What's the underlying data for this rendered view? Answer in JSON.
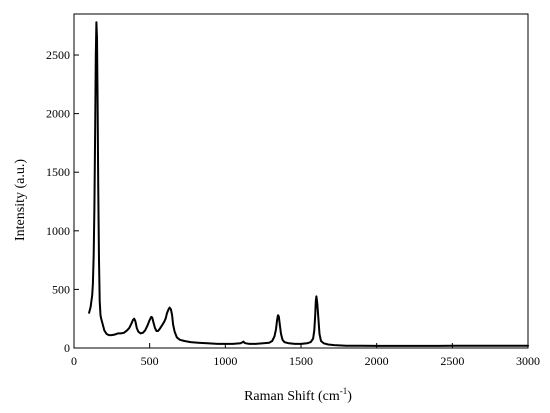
{
  "chart_data": {
    "type": "line",
    "title": "",
    "xlabel": "Raman Shift (cm",
    "xlabel_sup": "-1",
    "xlabel_close": ")",
    "ylabel": "Intensity (a.u.)",
    "xlim": [
      0,
      3000
    ],
    "ylim": [
      0,
      2850
    ],
    "grid": false,
    "legend": "none",
    "x_ticks": [
      0,
      500,
      1000,
      1500,
      2000,
      2500,
      3000
    ],
    "y_ticks": [
      0,
      500,
      1000,
      1500,
      2000,
      2500
    ],
    "series": [
      {
        "color": "#000000",
        "x": [
          100,
          110,
          120,
          125,
          130,
          135,
          140,
          144,
          148,
          152,
          156,
          160,
          165,
          170,
          175,
          180,
          190,
          200,
          215,
          230,
          250,
          270,
          290,
          310,
          330,
          350,
          365,
          380,
          390,
          398,
          405,
          415,
          425,
          440,
          455,
          470,
          485,
          500,
          510,
          517,
          525,
          535,
          545,
          555,
          565,
          575,
          585,
          595,
          605,
          615,
          625,
          632,
          640,
          648,
          655,
          665,
          680,
          700,
          730,
          770,
          820,
          880,
          950,
          1000,
          1050,
          1100,
          1115,
          1120,
          1125,
          1135,
          1160,
          1200,
          1250,
          1290,
          1310,
          1325,
          1335,
          1342,
          1348,
          1353,
          1360,
          1368,
          1378,
          1390,
          1420,
          1460,
          1500,
          1540,
          1565,
          1580,
          1588,
          1594,
          1598,
          1602,
          1608,
          1615,
          1622,
          1632,
          1650,
          1680,
          1720,
          1800,
          1900,
          2000,
          2100,
          2200,
          2300,
          2400,
          2500,
          2600,
          2700,
          2800,
          2900,
          3000
        ],
        "y": [
          300,
          350,
          450,
          550,
          800,
          1200,
          1900,
          2500,
          2780,
          2650,
          2100,
          1400,
          750,
          400,
          280,
          250,
          200,
          150,
          120,
          110,
          110,
          115,
          125,
          125,
          130,
          150,
          170,
          210,
          240,
          250,
          230,
          170,
          140,
          125,
          130,
          150,
          190,
          240,
          265,
          260,
          220,
          170,
          145,
          145,
          160,
          180,
          200,
          220,
          250,
          300,
          330,
          345,
          330,
          280,
          200,
          140,
          90,
          70,
          60,
          50,
          45,
          40,
          35,
          35,
          35,
          40,
          50,
          55,
          45,
          40,
          35,
          35,
          40,
          45,
          60,
          100,
          160,
          240,
          280,
          270,
          200,
          120,
          70,
          50,
          40,
          35,
          35,
          40,
          50,
          80,
          150,
          280,
          400,
          440,
          380,
          250,
          120,
          60,
          40,
          30,
          25,
          20,
          20,
          18,
          18,
          18,
          18,
          18,
          20,
          20,
          20,
          20,
          20,
          20
        ]
      }
    ]
  }
}
